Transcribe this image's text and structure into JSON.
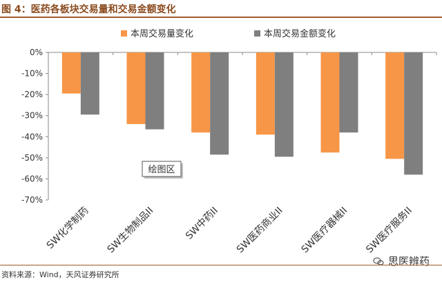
{
  "figure_title": "图 4：医药各板块交易量和交易金额变化",
  "source": "资料来源：Wind，天风证券研究所",
  "watermark": "思医辨药",
  "colors": {
    "volume": "#f79646",
    "amount": "#7f7f7f",
    "title": "#8a4a1e"
  },
  "chart_data": {
    "type": "bar",
    "title": "",
    "xlabel": "",
    "ylabel": "",
    "categories": [
      "SW化学制药",
      "SW生物制品II",
      "SW中药II",
      "SW医药商业II",
      "SW医疗器械II",
      "SW医疗服务II"
    ],
    "series": [
      {
        "name": "本周交易量变化",
        "values": [
          -19.5,
          -34.0,
          -38.0,
          -39.0,
          -47.5,
          -50.5
        ]
      },
      {
        "name": "本周交易金额变化",
        "values": [
          -29.5,
          -36.5,
          -48.5,
          -49.5,
          -38.0,
          -58.0
        ]
      }
    ],
    "ylim": [
      -70,
      0
    ],
    "yticks": [
      "0%",
      "-10%",
      "-20%",
      "-30%",
      "-40%",
      "-50%",
      "-60%",
      "-70%"
    ],
    "grid": false,
    "legend_position": "top",
    "annotation": "绘图区"
  }
}
